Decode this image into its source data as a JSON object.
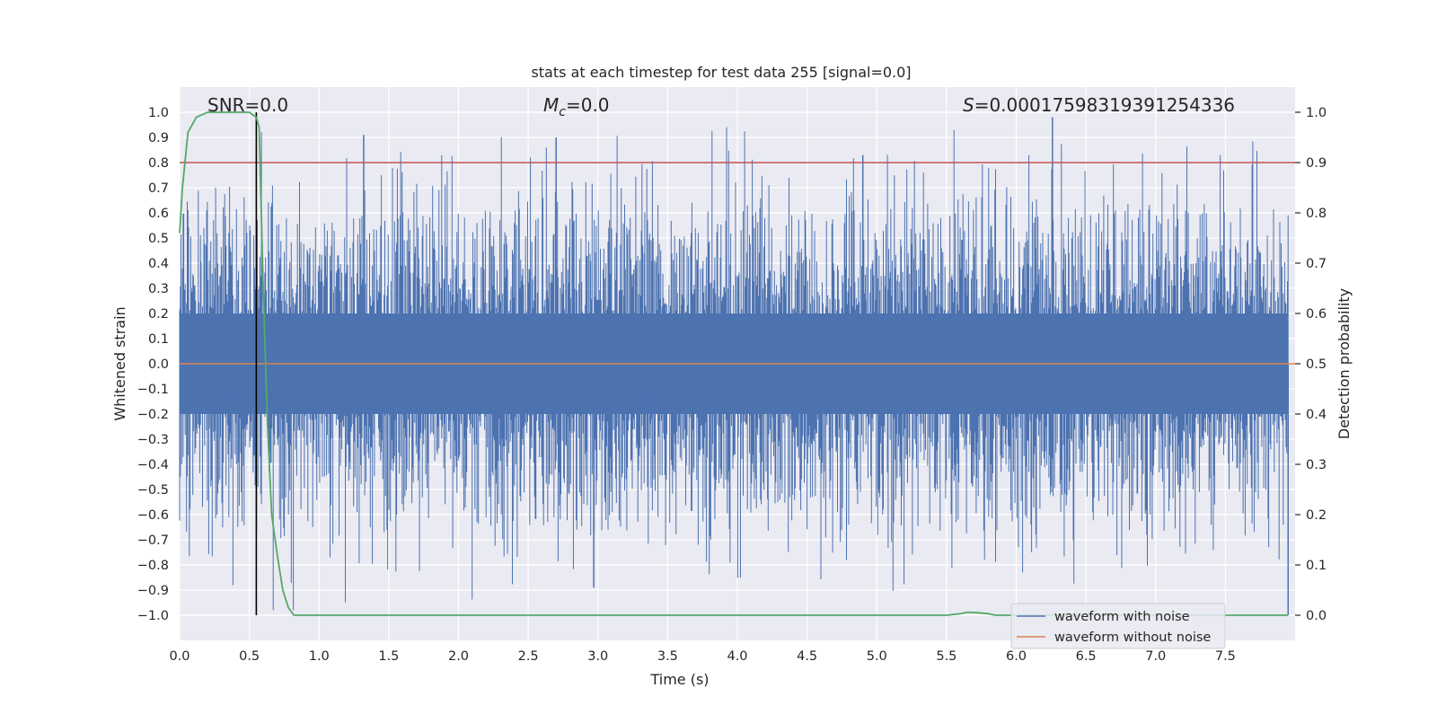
{
  "chart_data": {
    "type": "line",
    "title": "stats at each timestep for test data 255 [signal=0.0]",
    "xlabel": "Time (s)",
    "ylabel": "Whitened strain",
    "y2label": "Detection probability",
    "xlim": [
      0.0,
      8.0
    ],
    "ylim": [
      -1.1,
      1.1
    ],
    "y2lim": [
      -0.05,
      1.05
    ],
    "grid": true,
    "x_ticks": [
      0.0,
      0.5,
      1.0,
      1.5,
      2.0,
      2.5,
      3.0,
      3.5,
      4.0,
      4.5,
      5.0,
      5.5,
      6.0,
      6.5,
      7.0,
      7.5
    ],
    "x_tick_labels": [
      "0.0",
      "0.5",
      "1.0",
      "1.5",
      "2.0",
      "2.5",
      "3.0",
      "3.5",
      "4.0",
      "4.5",
      "5.0",
      "5.5",
      "6.0",
      "6.5",
      "7.0",
      "7.5"
    ],
    "y_ticks": [
      1.0,
      0.9,
      0.8,
      0.7,
      0.6,
      0.5,
      0.4,
      0.3,
      0.2,
      0.1,
      0.0,
      -0.1,
      -0.2,
      -0.3,
      -0.4,
      -0.5,
      -0.6,
      -0.7,
      -0.8,
      -0.9,
      -1.0
    ],
    "y_tick_labels": [
      "1.0",
      "0.9",
      "0.8",
      "0.7",
      "0.6",
      "0.5",
      "0.4",
      "0.3",
      "0.2",
      "0.1",
      "0.0",
      "−0.1",
      "−0.2",
      "−0.3",
      "−0.4",
      "−0.5",
      "−0.6",
      "−0.7",
      "−0.8",
      "−0.9",
      "−1.0"
    ],
    "y2_ticks": [
      1.0,
      0.9,
      0.8,
      0.7,
      0.6,
      0.5,
      0.4,
      0.3,
      0.2,
      0.1,
      0.0
    ],
    "y2_tick_labels": [
      "1.0",
      "0.9",
      "0.8",
      "0.7",
      "0.6",
      "0.5",
      "0.4",
      "0.3",
      "0.2",
      "0.1",
      "0.0"
    ],
    "annotations": {
      "snr": "SNR=0.0",
      "mc_symbol": "M",
      "mc_sub": "c",
      "mc_value": "=0.0",
      "s_symbol": "S",
      "s_value": "=0.00017598319391254336"
    },
    "threshold": {
      "value": 0.9,
      "axis": "y2",
      "color": "#c44e52"
    },
    "marker_time": {
      "x": 0.55,
      "y_range": [
        -1.0,
        1.0
      ],
      "color": "#000000"
    },
    "series": [
      {
        "name": "waveform with noise",
        "color": "#4c72b0",
        "description": "dense noisy whitened strain, amplitude mostly within ±0.5 with spikes up to ~±0.9",
        "envelope_typical": 0.5,
        "envelope_peak": 0.98,
        "notable_peaks": [
          [
            1.32,
            0.91
          ],
          [
            2.7,
            0.9
          ],
          [
            4.9,
            0.83
          ],
          [
            6.26,
            0.98
          ],
          [
            2.97,
            -0.89
          ],
          [
            7.95,
            -1.0
          ]
        ]
      },
      {
        "name": "waveform without noise",
        "color": "#dd8452",
        "x": [
          0.0,
          8.0
        ],
        "y": [
          0.0,
          0.0
        ]
      },
      {
        "name": "detection probability",
        "color": "#55a868",
        "axis": "y2",
        "x": [
          0.0,
          0.02,
          0.06,
          0.12,
          0.2,
          0.3,
          0.4,
          0.5,
          0.55,
          0.57,
          0.6,
          0.63,
          0.66,
          0.7,
          0.74,
          0.78,
          0.82,
          0.9,
          5.5,
          5.6,
          5.65,
          5.72,
          5.8,
          5.85,
          6.0,
          7.95
        ],
        "y": [
          0.76,
          0.85,
          0.96,
          0.99,
          1.0,
          1.0,
          1.0,
          1.0,
          0.99,
          0.97,
          0.65,
          0.38,
          0.2,
          0.12,
          0.05,
          0.015,
          0.0,
          0.0,
          0.0,
          0.003,
          0.006,
          0.005,
          0.003,
          0.0,
          0.0,
          0.0
        ]
      }
    ],
    "legend": {
      "position": "lower-right",
      "entries": [
        "waveform with noise",
        "waveform without noise"
      ]
    }
  }
}
